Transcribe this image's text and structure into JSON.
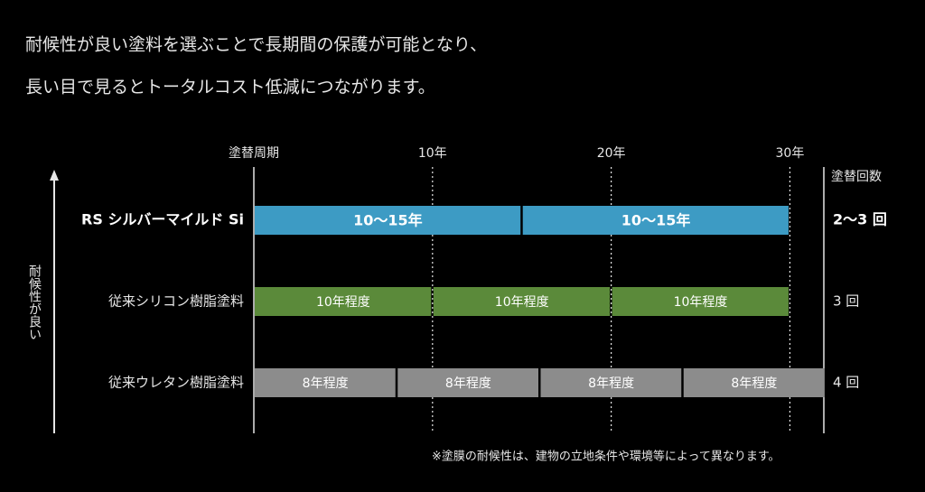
{
  "intro": [
    "耐候性が良い塗料を選ぶことで長期間の保護が可能となり、",
    "長い目で見るとトータルコスト低減につながります。"
  ],
  "chart_data": {
    "type": "range-bar",
    "xlim": [
      0,
      32
    ],
    "xticks": [
      {
        "value": 0,
        "label": "塗替周期"
      },
      {
        "value": 10,
        "label": "10年"
      },
      {
        "value": 20,
        "label": "20年"
      },
      {
        "value": 30,
        "label": "30年"
      }
    ],
    "ylabel": "耐候性が良い",
    "count_header": "塗替回数",
    "rows": [
      {
        "name": "RS シルバーマイルド Si",
        "color": "#3d9bc4",
        "count": "2〜3 回",
        "segments": [
          {
            "start": 0,
            "end": 15,
            "label": "10〜15年"
          },
          {
            "start": 15,
            "end": 30,
            "label": "10〜15年"
          }
        ]
      },
      {
        "name": "従来シリコン樹脂塗料",
        "color": "#5b8a3a",
        "count": "3 回",
        "segments": [
          {
            "start": 0,
            "end": 10,
            "label": "10年程度"
          },
          {
            "start": 10,
            "end": 20,
            "label": "10年程度"
          },
          {
            "start": 20,
            "end": 30,
            "label": "10年程度"
          }
        ]
      },
      {
        "name": "従来ウレタン樹脂塗料",
        "color": "#8c8c8c",
        "count": "4 回",
        "segments": [
          {
            "start": 0,
            "end": 8,
            "label": "8年程度"
          },
          {
            "start": 8,
            "end": 16,
            "label": "8年程度"
          },
          {
            "start": 16,
            "end": 24,
            "label": "8年程度"
          },
          {
            "start": 24,
            "end": 32,
            "label": "8年程度"
          }
        ]
      }
    ],
    "note": "※塗膜の耐候性は、建物の立地条件や環境等によって異なります。"
  }
}
